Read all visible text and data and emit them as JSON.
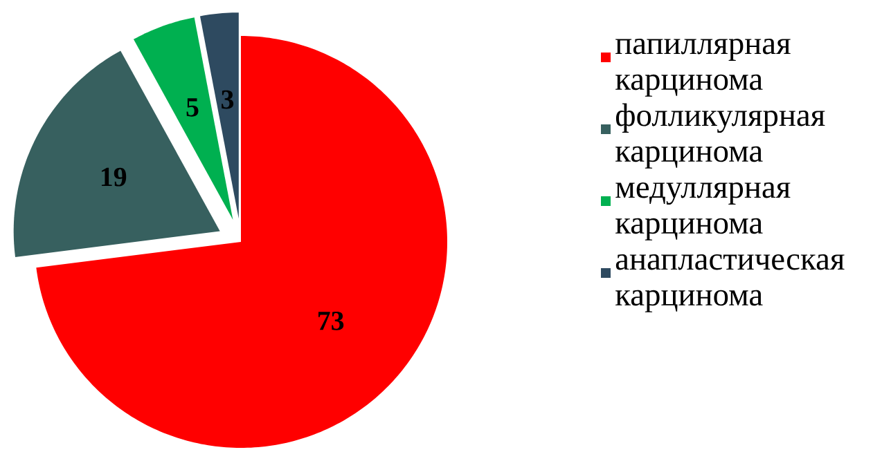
{
  "chart_data": {
    "type": "pie",
    "categories": [
      "папиллярная карцинома",
      "фолликулярная карцинома",
      "медуллярная карцинома",
      "анапластическая карцинома"
    ],
    "values": [
      73,
      19,
      5,
      3
    ],
    "colors": [
      "#ff0000",
      "#37605f",
      "#00b050",
      "#2e4a60"
    ],
    "data_labels": true,
    "legend": "right"
  }
}
